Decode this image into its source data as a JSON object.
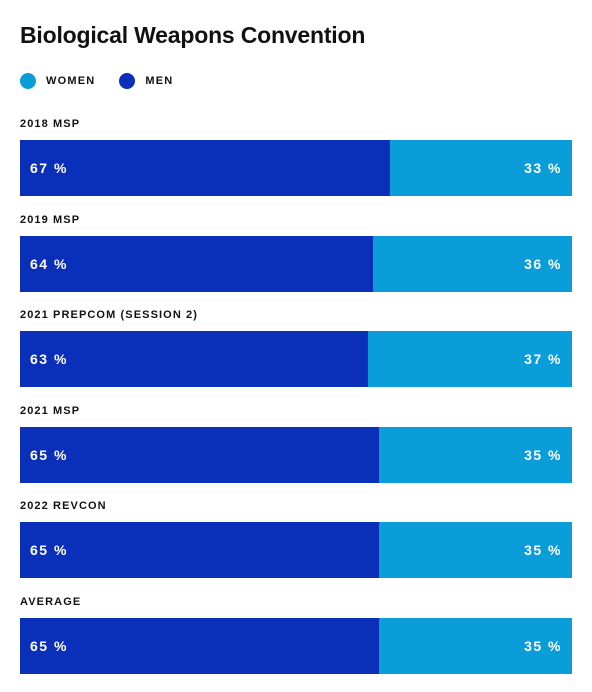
{
  "chart_data": {
    "type": "bar",
    "stacked": true,
    "orientation": "horizontal",
    "title": "Biological Weapons Convention",
    "legend": [
      {
        "name": "WOMEN",
        "color": "#0a9dd9"
      },
      {
        "name": "MEN",
        "color": "#0a2fb8"
      }
    ],
    "categories": [
      "2018 MSP",
      "2019 MSP",
      "2021 PREPCOM (SESSION 2)",
      "2021 MSP",
      "2022 REVCON",
      "AVERAGE"
    ],
    "series": [
      {
        "name": "MEN",
        "values": [
          67,
          64,
          63,
          65,
          65,
          65
        ],
        "labels": [
          "67 %",
          "64 %",
          "63 %",
          "65 %",
          "65 %",
          "65 %"
        ]
      },
      {
        "name": "WOMEN",
        "values": [
          33,
          36,
          37,
          35,
          35,
          35
        ],
        "labels": [
          "33 %",
          "36 %",
          "37 %",
          "35 %",
          "35 %",
          "35 %"
        ]
      }
    ],
    "unit": "%",
    "xlim": [
      0,
      100
    ]
  }
}
